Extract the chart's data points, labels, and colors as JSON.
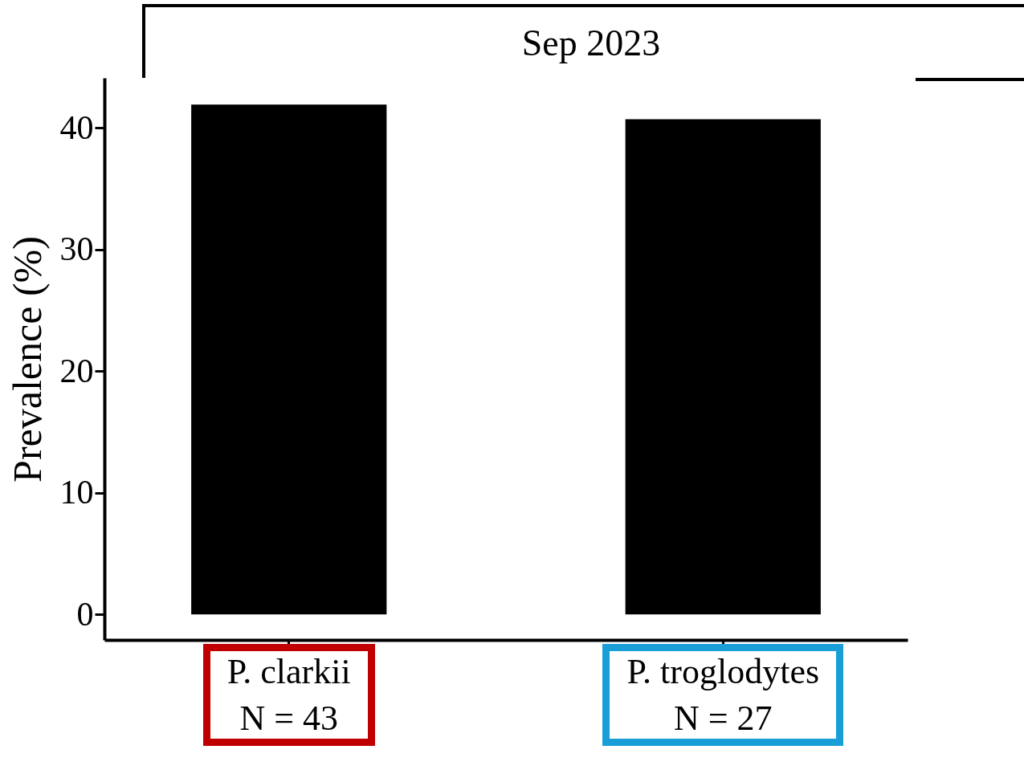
{
  "chart_data": {
    "type": "bar",
    "title": "Sep 2023",
    "ylabel": "Prevalence (%)",
    "categories": [
      "P. clarkii\nN = 43",
      "P. troglodytes\nN = 27"
    ],
    "values": [
      41.9,
      40.7
    ],
    "color": "#000000",
    "ylim": [
      -2.1,
      44.1
    ],
    "yticks": [
      0,
      10,
      20,
      30,
      40
    ],
    "grid": false
  }
}
